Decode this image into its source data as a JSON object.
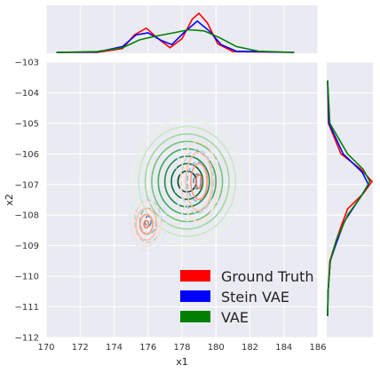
{
  "chart_data": {
    "type": "joint_kde",
    "xlabel": "x1",
    "ylabel": "x2",
    "xlim": [
      170,
      186
    ],
    "ylim": [
      -112,
      -103
    ],
    "xticks": [
      "170",
      "172",
      "174",
      "176",
      "178",
      "180",
      "182",
      "184",
      "186"
    ],
    "yticks": [
      "−103",
      "−104",
      "−105",
      "−106",
      "−107",
      "−108",
      "−109",
      "−110",
      "−111",
      "−112"
    ],
    "xtick_values": [
      170,
      172,
      174,
      176,
      178,
      180,
      182,
      184,
      186
    ],
    "ytick_values": [
      -103,
      -104,
      -105,
      -106,
      -107,
      -108,
      -109,
      -110,
      -111,
      -112
    ],
    "grid": true,
    "legend_position": "lower-right",
    "series": [
      {
        "name": "Ground Truth",
        "color": "#ff0000",
        "contour_palette": [
          "#fde0d2",
          "#fcbfa3",
          "#fc9a78",
          "#f67a5a"
        ],
        "modes": [
          {
            "x": 179.0,
            "y": -106.9,
            "sx": 0.45,
            "sy": 0.55
          },
          {
            "x": 175.9,
            "y": -108.3,
            "sx": 0.35,
            "sy": 0.3
          }
        ],
        "x_marginal": [
          {
            "x": 170.6,
            "d": 0.0
          },
          {
            "x": 173.0,
            "d": 0.0
          },
          {
            "x": 174.5,
            "d": 0.1
          },
          {
            "x": 175.2,
            "d": 0.45
          },
          {
            "x": 175.9,
            "d": 0.62
          },
          {
            "x": 176.6,
            "d": 0.35
          },
          {
            "x": 177.3,
            "d": 0.12
          },
          {
            "x": 178.0,
            "d": 0.35
          },
          {
            "x": 178.6,
            "d": 0.85
          },
          {
            "x": 179.0,
            "d": 1.0
          },
          {
            "x": 179.5,
            "d": 0.75
          },
          {
            "x": 180.1,
            "d": 0.22
          },
          {
            "x": 181.0,
            "d": 0.02
          },
          {
            "x": 184.6,
            "d": 0.0
          }
        ],
        "y_marginal": [
          {
            "y": -103.6,
            "d": 0.0
          },
          {
            "y": -105.0,
            "d": 0.02
          },
          {
            "y": -106.0,
            "d": 0.3
          },
          {
            "y": -106.5,
            "d": 0.75
          },
          {
            "y": -106.9,
            "d": 1.0
          },
          {
            "y": -107.3,
            "d": 0.8
          },
          {
            "y": -107.8,
            "d": 0.45
          },
          {
            "y": -108.3,
            "d": 0.32
          },
          {
            "y": -108.8,
            "d": 0.2
          },
          {
            "y": -109.5,
            "d": 0.05
          },
          {
            "y": -110.5,
            "d": 0.01
          },
          {
            "y": -111.3,
            "d": 0.0
          }
        ]
      },
      {
        "name": "Stein VAE",
        "color": "#0000ff",
        "contour_palette": [
          "#d9e8f5",
          "#b4d3ea",
          "#85b9de",
          "#4f95c8"
        ],
        "modes": [
          {
            "x": 178.9,
            "y": -106.9,
            "sx": 0.55,
            "sy": 0.6
          },
          {
            "x": 176.0,
            "y": -108.2,
            "sx": 0.45,
            "sy": 0.4
          }
        ],
        "x_marginal": [
          {
            "x": 170.6,
            "d": 0.0
          },
          {
            "x": 173.0,
            "d": 0.01
          },
          {
            "x": 174.5,
            "d": 0.15
          },
          {
            "x": 175.3,
            "d": 0.45
          },
          {
            "x": 176.0,
            "d": 0.5
          },
          {
            "x": 176.8,
            "d": 0.3
          },
          {
            "x": 177.4,
            "d": 0.2
          },
          {
            "x": 178.1,
            "d": 0.5
          },
          {
            "x": 178.9,
            "d": 0.8
          },
          {
            "x": 179.6,
            "d": 0.55
          },
          {
            "x": 180.3,
            "d": 0.2
          },
          {
            "x": 181.2,
            "d": 0.03
          },
          {
            "x": 184.6,
            "d": 0.0
          }
        ],
        "y_marginal": [
          {
            "y": -103.6,
            "d": 0.0
          },
          {
            "y": -105.0,
            "d": 0.03
          },
          {
            "y": -106.0,
            "d": 0.35
          },
          {
            "y": -106.6,
            "d": 0.78
          },
          {
            "y": -107.0,
            "d": 0.92
          },
          {
            "y": -107.5,
            "d": 0.7
          },
          {
            "y": -108.2,
            "d": 0.38
          },
          {
            "y": -108.9,
            "d": 0.2
          },
          {
            "y": -109.5,
            "d": 0.06
          },
          {
            "y": -110.5,
            "d": 0.01
          },
          {
            "y": -111.3,
            "d": 0.0
          }
        ]
      },
      {
        "name": "VAE",
        "color": "#008000",
        "contour_palette": [
          "#e5f5e0",
          "#c7e9c0",
          "#a1d99b",
          "#74c476",
          "#41ab5d",
          "#238b45",
          "#006d2c",
          "#00441b"
        ],
        "modes": [
          {
            "x": 178.3,
            "y": -106.9,
            "sx": 1.35,
            "sy": 0.85
          }
        ],
        "x_marginal": [
          {
            "x": 170.6,
            "d": 0.0
          },
          {
            "x": 173.0,
            "d": 0.02
          },
          {
            "x": 174.5,
            "d": 0.12
          },
          {
            "x": 175.5,
            "d": 0.32
          },
          {
            "x": 176.5,
            "d": 0.42
          },
          {
            "x": 177.5,
            "d": 0.5
          },
          {
            "x": 178.4,
            "d": 0.58
          },
          {
            "x": 179.3,
            "d": 0.55
          },
          {
            "x": 180.2,
            "d": 0.38
          },
          {
            "x": 181.2,
            "d": 0.15
          },
          {
            "x": 182.5,
            "d": 0.03
          },
          {
            "x": 184.6,
            "d": 0.0
          }
        ],
        "y_marginal": [
          {
            "y": -103.6,
            "d": 0.0
          },
          {
            "y": -105.0,
            "d": 0.05
          },
          {
            "y": -106.0,
            "d": 0.45
          },
          {
            "y": -106.5,
            "d": 0.8
          },
          {
            "y": -106.9,
            "d": 0.95
          },
          {
            "y": -107.4,
            "d": 0.75
          },
          {
            "y": -108.0,
            "d": 0.45
          },
          {
            "y": -108.8,
            "d": 0.2
          },
          {
            "y": -109.5,
            "d": 0.06
          },
          {
            "y": -110.5,
            "d": 0.01
          },
          {
            "y": -111.3,
            "d": 0.0
          }
        ]
      }
    ]
  }
}
